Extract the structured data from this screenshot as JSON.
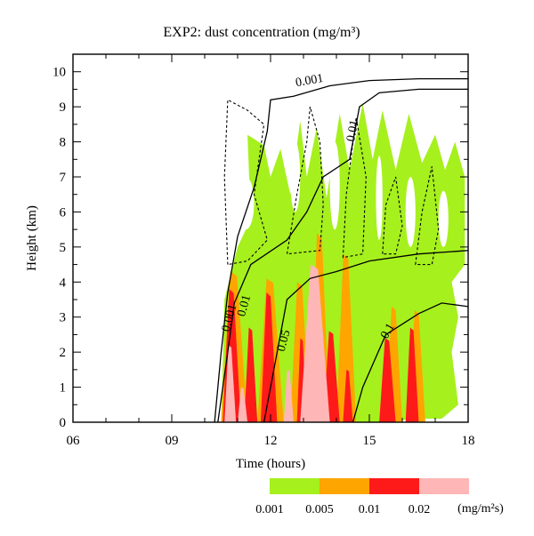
{
  "chart_data": {
    "type": "contour",
    "title": "EXP2: dust concentration (mg/m³)",
    "xlabel": "Time (hours)",
    "ylabel": "Height (km)",
    "xlim": [
      6,
      18
    ],
    "ylim": [
      0,
      10.5
    ],
    "x_ticks": [
      {
        "value": 6,
        "label": "06"
      },
      {
        "value": 9,
        "label": "09"
      },
      {
        "value": 12,
        "label": "12"
      },
      {
        "value": 15,
        "label": "15"
      },
      {
        "value": 18,
        "label": "18"
      }
    ],
    "y_ticks": [
      0,
      1,
      2,
      3,
      4,
      5,
      6,
      7,
      8,
      9,
      10
    ],
    "colorbar": {
      "unit": "(mg/m²s)",
      "boundary_labels": [
        "0.001",
        "0.005",
        "0.01",
        "0.02"
      ],
      "bins": [
        {
          "from": 0.001,
          "to": 0.005,
          "color": "#a6f01e"
        },
        {
          "from": 0.005,
          "to": 0.01,
          "color": "#ffa500"
        },
        {
          "from": 0.01,
          "to": 0.02,
          "color": "#ff1a1a"
        },
        {
          "from": 0.02,
          "to": null,
          "color": "#ffb6b6"
        }
      ]
    },
    "contour_lines": [
      {
        "label": "0.001",
        "style": "solid",
        "points": [
          [
            10.3,
            0
          ],
          [
            10.5,
            2
          ],
          [
            10.7,
            3.7
          ],
          [
            11.0,
            5.3
          ],
          [
            11.5,
            6.7
          ],
          [
            11.9,
            8.3
          ],
          [
            12.0,
            9.2
          ],
          [
            12.7,
            9.3
          ],
          [
            13.8,
            9.6
          ],
          [
            15.0,
            9.75
          ],
          [
            16.5,
            9.8
          ],
          [
            18.0,
            9.8
          ]
        ]
      },
      {
        "label": "0.01",
        "style": "solid",
        "points": [
          [
            10.4,
            0
          ],
          [
            10.7,
            2
          ],
          [
            10.9,
            3.4
          ],
          [
            11.4,
            4.5
          ],
          [
            12.5,
            5.2
          ],
          [
            13.1,
            6.0
          ],
          [
            13.6,
            7.0
          ],
          [
            14.4,
            7.5
          ],
          [
            14.7,
            9.0
          ],
          [
            15.3,
            9.4
          ],
          [
            16.5,
            9.5
          ],
          [
            18.0,
            9.5
          ]
        ]
      },
      {
        "label": "0.05",
        "style": "solid",
        "points": [
          [
            11.8,
            0
          ],
          [
            12.1,
            1.5
          ],
          [
            12.5,
            3.5
          ],
          [
            13.2,
            4.1
          ],
          [
            14.0,
            4.3
          ],
          [
            15.0,
            4.6
          ],
          [
            16.5,
            4.8
          ],
          [
            18.0,
            4.9
          ]
        ]
      },
      {
        "label": "0.1",
        "style": "solid",
        "points": [
          [
            14.5,
            0
          ],
          [
            14.8,
            1
          ],
          [
            15.5,
            2.5
          ],
          [
            16.5,
            3.1
          ],
          [
            17.2,
            3.4
          ],
          [
            18.0,
            3.3
          ]
        ]
      }
    ],
    "dashed_contours": [
      {
        "style": "dashed",
        "points": [
          [
            10.7,
            4.5
          ],
          [
            10.6,
            7.0
          ],
          [
            10.7,
            9.2
          ],
          [
            11.3,
            8.9
          ],
          [
            11.8,
            8.5
          ],
          [
            11.5,
            6.5
          ],
          [
            11.9,
            5.2
          ],
          [
            11.3,
            4.6
          ]
        ]
      },
      {
        "style": "dashed",
        "points": [
          [
            12.5,
            4.8
          ],
          [
            12.8,
            6.5
          ],
          [
            13.1,
            8.0
          ],
          [
            13.2,
            9.0
          ],
          [
            13.5,
            8.0
          ],
          [
            13.6,
            6.2
          ],
          [
            13.5,
            4.9
          ]
        ]
      },
      {
        "style": "dashed",
        "points": [
          [
            14.2,
            4.7
          ],
          [
            14.3,
            6.5
          ],
          [
            14.6,
            8.7
          ],
          [
            14.9,
            7.0
          ],
          [
            14.8,
            4.8
          ]
        ]
      },
      {
        "style": "dashed",
        "points": [
          [
            15.4,
            4.8
          ],
          [
            15.5,
            6.2
          ],
          [
            15.8,
            7.0
          ],
          [
            16.0,
            5.6
          ],
          [
            15.8,
            4.8
          ]
        ]
      },
      {
        "style": "dashed",
        "points": [
          [
            16.4,
            4.5
          ],
          [
            16.6,
            6.0
          ],
          [
            16.9,
            7.3
          ],
          [
            17.1,
            5.5
          ],
          [
            16.9,
            4.5
          ]
        ]
      }
    ]
  }
}
